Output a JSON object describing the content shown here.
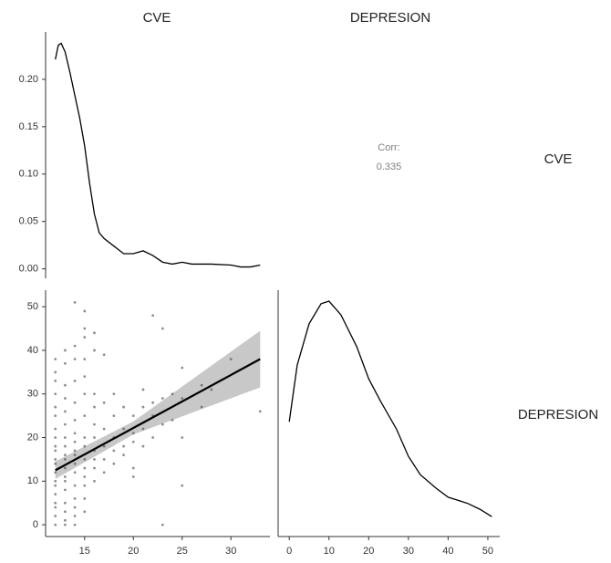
{
  "strip_labels": {
    "columns": [
      "CVE",
      "DEPRESION"
    ],
    "rows": [
      "CVE",
      "DEPRESION"
    ]
  },
  "chart_data": [
    {
      "type": "line",
      "color": "#000000",
      "x": [
        12,
        12.3,
        12.6,
        13,
        13.5,
        14,
        14.5,
        15,
        15.5,
        16,
        16.5,
        17,
        18,
        19,
        20,
        21,
        22,
        23,
        24,
        25,
        26,
        28,
        30,
        31,
        32,
        33
      ],
      "values": [
        0.221,
        0.236,
        0.238,
        0.229,
        0.207,
        0.183,
        0.159,
        0.13,
        0.091,
        0.058,
        0.038,
        0.032,
        0.024,
        0.016,
        0.016,
        0.019,
        0.014,
        0.007,
        0.005,
        0.007,
        0.005,
        0.005,
        0.004,
        0.002,
        0.002,
        0.004
      ],
      "xlim": [
        11,
        34
      ],
      "ylim": [
        -0.01,
        0.25
      ],
      "yticks": [
        {
          "value": 0,
          "label": "0.00"
        },
        {
          "value": 0.05,
          "label": "0.05"
        },
        {
          "value": 0.1,
          "label": "0.10"
        },
        {
          "value": 0.15,
          "label": "0.15"
        },
        {
          "value": 0.2,
          "label": "0.20"
        }
      ]
    },
    {
      "type": "corr",
      "label": "Corr:",
      "value": 0.335,
      "color": "#808080"
    },
    {
      "type": "scatter",
      "color": "#444444",
      "x": [
        12,
        12,
        12,
        12,
        12,
        12,
        12,
        12,
        12,
        12,
        12,
        12,
        12,
        12,
        12,
        12,
        12,
        12,
        12,
        12,
        13,
        13,
        13,
        13,
        13,
        13,
        13,
        13,
        13,
        13,
        13,
        13,
        13,
        13,
        13,
        13,
        13,
        13,
        14,
        14,
        14,
        14,
        14,
        14,
        14,
        14,
        14,
        14,
        14,
        14,
        14,
        14,
        14,
        14,
        14,
        15,
        15,
        15,
        15,
        15,
        15,
        15,
        15,
        15,
        15,
        15,
        15,
        15,
        15,
        15,
        16,
        16,
        16,
        16,
        16,
        16,
        16,
        16,
        16,
        16,
        17,
        17,
        17,
        17,
        17,
        17,
        18,
        18,
        18,
        18,
        18,
        19,
        19,
        19,
        19,
        20,
        20,
        20,
        20,
        20,
        21,
        21,
        21,
        21,
        22,
        22,
        22,
        22,
        23,
        23,
        23,
        23,
        24,
        24,
        25,
        25,
        25,
        25,
        27,
        27,
        28,
        30,
        33
      ],
      "values": [
        0,
        2,
        4,
        5,
        7,
        9,
        10,
        12,
        14,
        15,
        17,
        18,
        20,
        22,
        25,
        27,
        30,
        33,
        35,
        38,
        0,
        1,
        3,
        5,
        8,
        10,
        11,
        13,
        15,
        16,
        18,
        20,
        23,
        26,
        29,
        32,
        37,
        40,
        0,
        2,
        4,
        6,
        9,
        12,
        14,
        16,
        17,
        19,
        21,
        24,
        28,
        33,
        38,
        41,
        51,
        3,
        6,
        9,
        11,
        13,
        15,
        18,
        20,
        25,
        30,
        34,
        38,
        43,
        45,
        49,
        10,
        13,
        15,
        17,
        20,
        23,
        27,
        30,
        40,
        44,
        12,
        15,
        18,
        22,
        28,
        39,
        14,
        17,
        20,
        25,
        30,
        16,
        18,
        22,
        27,
        11,
        13,
        19,
        21,
        25,
        18,
        22,
        27,
        31,
        20,
        25,
        28,
        48,
        0,
        23,
        29,
        45,
        24,
        30,
        9,
        20,
        29,
        36,
        27,
        32,
        31,
        38,
        26
      ],
      "fit": {
        "x": [
          12,
          20,
          33
        ],
        "y": [
          12.5,
          22.2,
          38
        ],
        "lower": [
          10.5,
          20.7,
          31.5
        ],
        "upper": [
          14.5,
          23.7,
          44.5
        ],
        "color": "#000000",
        "band_color": "#c8c8c8"
      },
      "xlim": [
        11,
        34
      ],
      "ylim": [
        -2.7,
        53.8
      ],
      "xticks": [
        15,
        20,
        25,
        30
      ],
      "yticks": [
        0,
        10,
        20,
        30,
        40,
        50
      ]
    },
    {
      "type": "line",
      "color": "#000000",
      "x": [
        0,
        2,
        5,
        8,
        10,
        13,
        17,
        20,
        23,
        27,
        30,
        33,
        37,
        40,
        45,
        48,
        51
      ],
      "values": [
        0.0199,
        0.0307,
        0.0386,
        0.0424,
        0.0429,
        0.0403,
        0.0342,
        0.0281,
        0.0238,
        0.0185,
        0.0133,
        0.0098,
        0.0072,
        0.0055,
        0.0043,
        0.0032,
        0.0018
      ],
      "xlim": [
        -2.8,
        53
      ],
      "ylim": [
        -0.002,
        0.045
      ],
      "xticks": [
        0,
        10,
        20,
        30,
        40,
        50
      ]
    }
  ]
}
